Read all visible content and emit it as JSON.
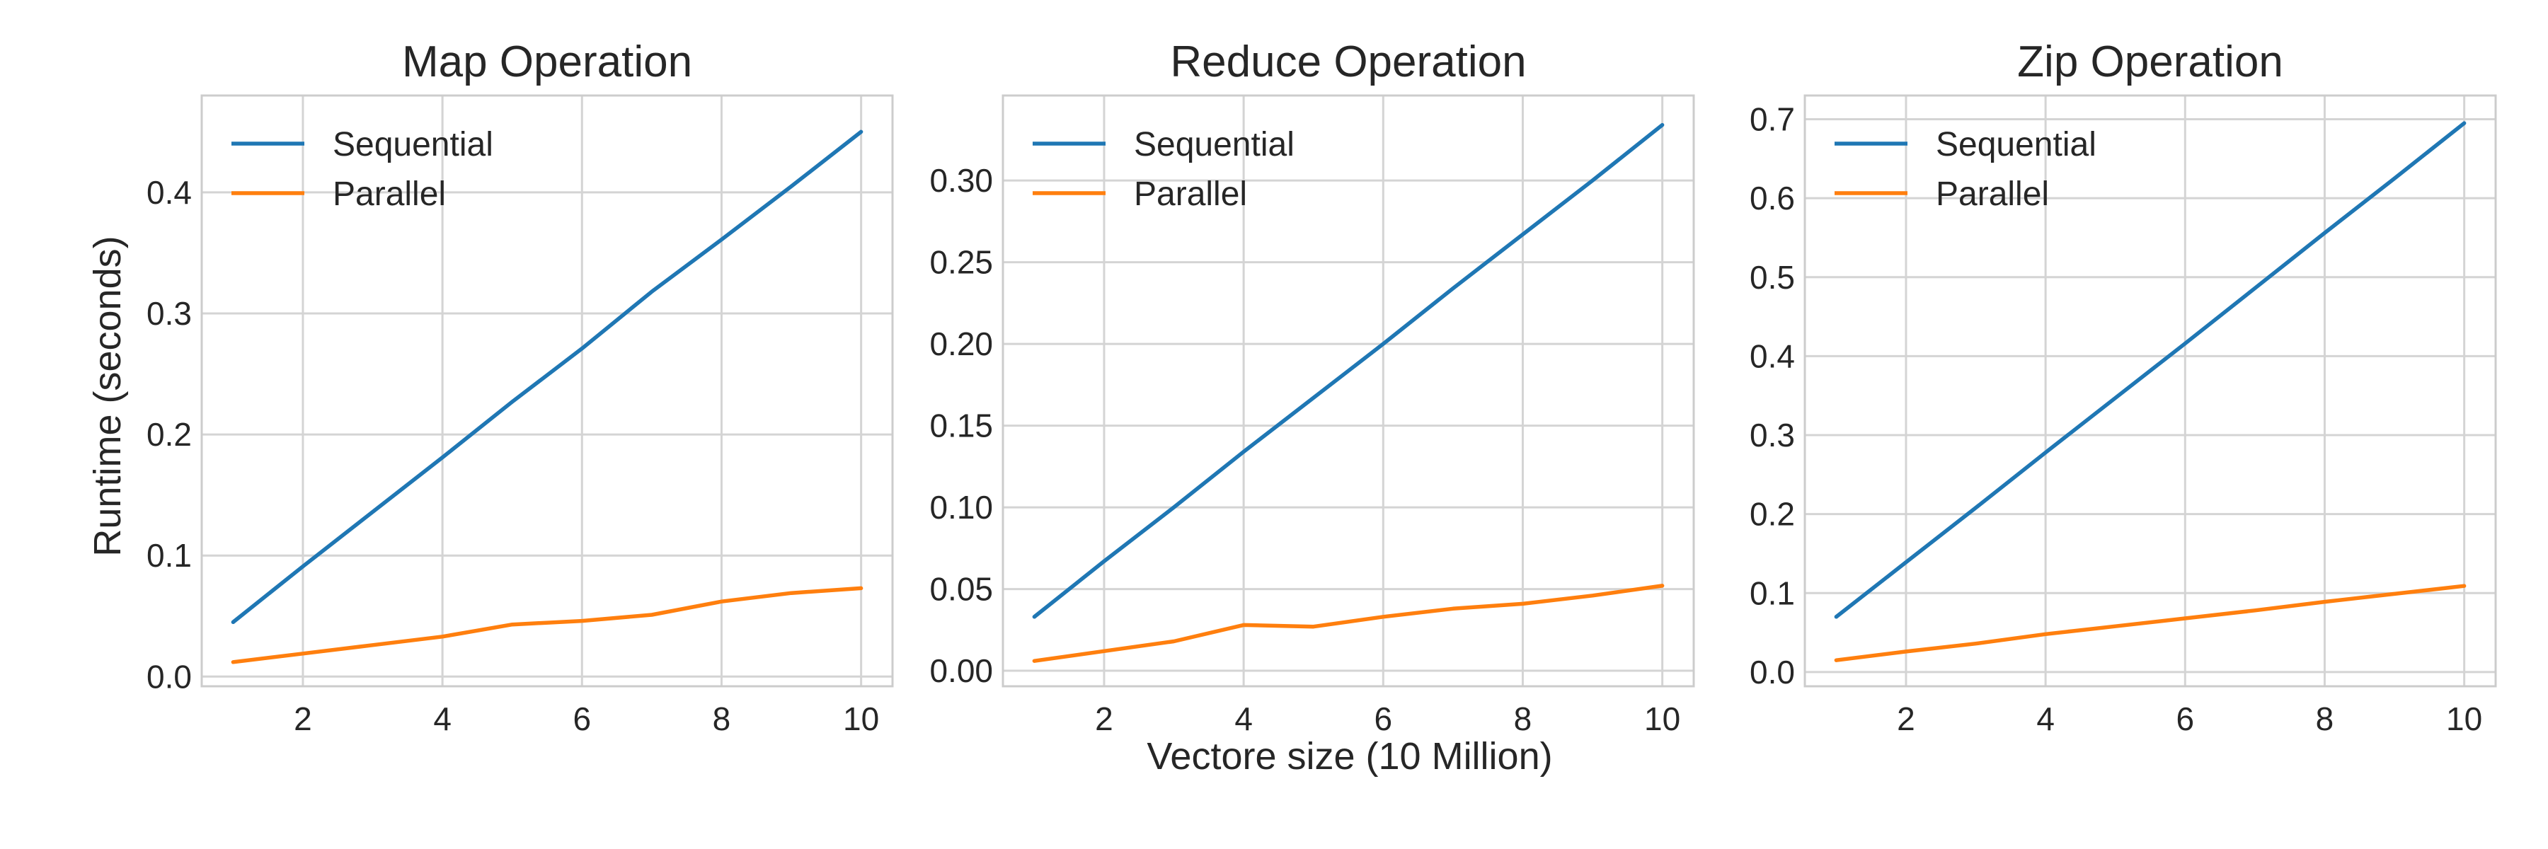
{
  "figure": {
    "ylabel": "Runtime (seconds)",
    "xlabel": "Vectore size (10 Million)"
  },
  "colors": {
    "sequential": "#1f77b4",
    "parallel": "#ff7f0e"
  },
  "chart_data": [
    {
      "type": "line",
      "title": "Map Operation",
      "xlabel": "",
      "ylabel": "Runtime (seconds)",
      "x": [
        1,
        2,
        3,
        4,
        5,
        6,
        7,
        8,
        9,
        10
      ],
      "xlim": [
        0.55,
        10.45
      ],
      "xticks": [
        2,
        4,
        6,
        8,
        10
      ],
      "ylim": [
        -0.008,
        0.48
      ],
      "yticks": [
        0.0,
        0.1,
        0.2,
        0.3,
        0.4
      ],
      "ytick_labels": [
        "0.0",
        "0.1",
        "0.2",
        "0.3",
        "0.4"
      ],
      "grid": true,
      "legend": "top-left",
      "series": [
        {
          "name": "Sequential",
          "color": "#1f77b4",
          "values": [
            0.045,
            0.091,
            0.136,
            0.181,
            0.227,
            0.271,
            0.318,
            0.361,
            0.405,
            0.45
          ]
        },
        {
          "name": "Parallel",
          "color": "#ff7f0e",
          "values": [
            0.012,
            0.019,
            0.026,
            0.033,
            0.043,
            0.046,
            0.051,
            0.062,
            0.069,
            0.073
          ]
        }
      ]
    },
    {
      "type": "line",
      "title": "Reduce Operation",
      "xlabel": "Vectore size (10 Million)",
      "ylabel": "",
      "x": [
        1,
        2,
        3,
        4,
        5,
        6,
        7,
        8,
        9,
        10
      ],
      "xlim": [
        0.55,
        10.45
      ],
      "xticks": [
        2,
        4,
        6,
        8,
        10
      ],
      "ylim": [
        -0.0095,
        0.352
      ],
      "yticks": [
        0.0,
        0.05,
        0.1,
        0.15,
        0.2,
        0.25,
        0.3
      ],
      "ytick_labels": [
        "0.00",
        "0.05",
        "0.10",
        "0.15",
        "0.20",
        "0.25",
        "0.30"
      ],
      "grid": true,
      "legend": "top-left",
      "series": [
        {
          "name": "Sequential",
          "color": "#1f77b4",
          "values": [
            0.033,
            0.067,
            0.1,
            0.134,
            0.167,
            0.2,
            0.234,
            0.267,
            0.3,
            0.334
          ]
        },
        {
          "name": "Parallel",
          "color": "#ff7f0e",
          "values": [
            0.006,
            0.012,
            0.018,
            0.028,
            0.027,
            0.033,
            0.038,
            0.041,
            0.046,
            0.052
          ]
        }
      ]
    },
    {
      "type": "line",
      "title": "Zip Operation",
      "xlabel": "",
      "ylabel": "",
      "x": [
        1,
        2,
        3,
        4,
        5,
        6,
        7,
        8,
        9,
        10
      ],
      "xlim": [
        0.55,
        10.45
      ],
      "xticks": [
        2,
        4,
        6,
        8,
        10
      ],
      "ylim": [
        -0.018,
        0.73
      ],
      "yticks": [
        0.0,
        0.1,
        0.2,
        0.3,
        0.4,
        0.5,
        0.6,
        0.7
      ],
      "ytick_labels": [
        "0.0",
        "0.1",
        "0.2",
        "0.3",
        "0.4",
        "0.5",
        "0.6",
        "0.7"
      ],
      "grid": true,
      "legend": "top-left",
      "series": [
        {
          "name": "Sequential",
          "color": "#1f77b4",
          "values": [
            0.07,
            0.139,
            0.208,
            0.278,
            0.347,
            0.416,
            0.486,
            0.556,
            0.625,
            0.695
          ]
        },
        {
          "name": "Parallel",
          "color": "#ff7f0e",
          "values": [
            0.015,
            0.026,
            0.036,
            0.048,
            0.058,
            0.068,
            0.078,
            0.089,
            0.099,
            0.109
          ]
        }
      ]
    }
  ]
}
